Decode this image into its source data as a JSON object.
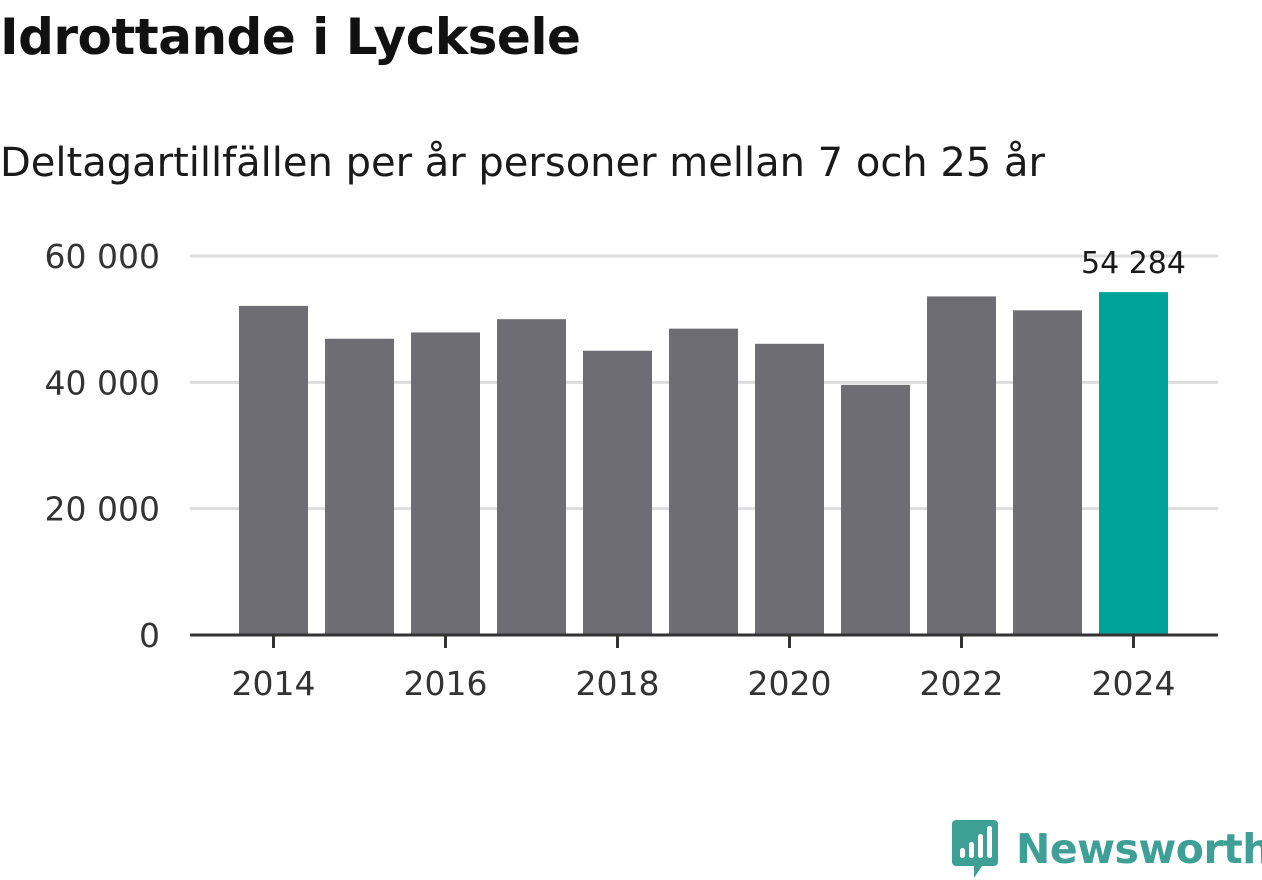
{
  "chart_data": {
    "type": "bar",
    "title": "Idrottande i Lycksele",
    "subtitle": "Deltagartillfällen per år personer mellan 7 och 25 år",
    "x": [
      2014,
      2015,
      2016,
      2017,
      2018,
      2019,
      2020,
      2021,
      2022,
      2023,
      2024
    ],
    "values": [
      52100,
      46900,
      47900,
      50000,
      45000,
      48500,
      46100,
      39600,
      53600,
      51400,
      54284
    ],
    "x_ticks": [
      "2014",
      "2016",
      "2018",
      "2020",
      "2022",
      "2024"
    ],
    "y_ticks": [
      "0",
      "20 000",
      "40 000",
      "60 000"
    ],
    "ylim": [
      0,
      60000
    ],
    "highlight": {
      "index": 10,
      "label": "54 284"
    },
    "grid": true,
    "colors": {
      "bar": "#6e6d73",
      "highlight": "#00a39a",
      "grid": "#dddddd",
      "axis": "#333333"
    }
  },
  "logo": {
    "text": "Newsworthy",
    "color": "#3e9f97"
  }
}
